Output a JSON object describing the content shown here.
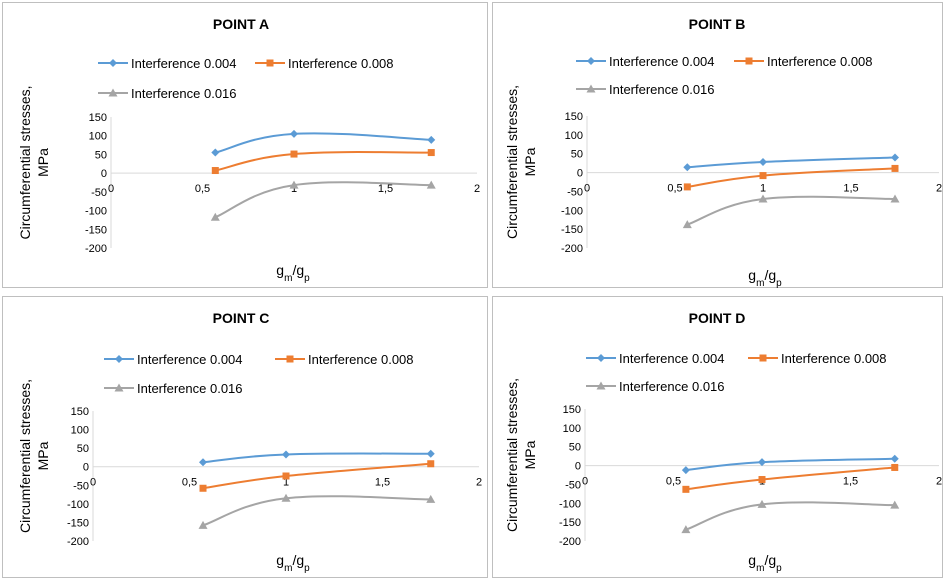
{
  "chart_data": [
    {
      "type": "line",
      "title": "POINT A",
      "ylabel_line1": "Circumferential stresses,",
      "ylabel_line2": "MPa",
      "xlabel": {
        "base1": "g",
        "sub1": "m",
        "sep": "/",
        "base2": "g",
        "sub2": "p"
      },
      "xlim": [
        0,
        2
      ],
      "ylim": [
        -200,
        150
      ],
      "xticks": [
        "0",
        "0,5",
        "1",
        "1,5",
        "2"
      ],
      "yticks": [
        "150",
        "100",
        "50",
        "0",
        "-50",
        "-100",
        "-150",
        "-200"
      ],
      "legend_position": "top",
      "series": [
        {
          "name": "Interference 0.004",
          "color": "#5b9bd5",
          "marker": "diamond",
          "x": [
            0.57,
            1,
            1.75
          ],
          "y": [
            55,
            105,
            89
          ]
        },
        {
          "name": "Interference 0.008",
          "color": "#ed7d31",
          "marker": "square",
          "x": [
            0.57,
            1,
            1.75
          ],
          "y": [
            7,
            51,
            55
          ]
        },
        {
          "name": "Interference 0.016",
          "color": "#a5a5a5",
          "marker": "triangle",
          "x": [
            0.57,
            1,
            1.75
          ],
          "y": [
            -118,
            -32,
            -32
          ]
        }
      ]
    },
    {
      "type": "line",
      "title": "POINT B",
      "ylabel_line1": "Circumferential stresses,",
      "ylabel_line2": "MPa",
      "xlabel": {
        "base1": "g",
        "sub1": "m",
        "sep": "/",
        "base2": "g",
        "sub2": "p"
      },
      "xlim": [
        0,
        2
      ],
      "ylim": [
        -200,
        150
      ],
      "xticks": [
        "0",
        "0,5",
        "1",
        "1,5",
        "2"
      ],
      "yticks": [
        "150",
        "100",
        "50",
        "0",
        "-50",
        "-100",
        "-150",
        "-200"
      ],
      "legend_position": "top",
      "series": [
        {
          "name": "Interference 0.004",
          "color": "#5b9bd5",
          "marker": "diamond",
          "x": [
            0.57,
            1,
            1.75
          ],
          "y": [
            14,
            28,
            40
          ]
        },
        {
          "name": "Interference 0.008",
          "color": "#ed7d31",
          "marker": "square",
          "x": [
            0.57,
            1,
            1.75
          ],
          "y": [
            -38,
            -8,
            11
          ]
        },
        {
          "name": "Interference 0.016",
          "color": "#a5a5a5",
          "marker": "triangle",
          "x": [
            0.57,
            1,
            1.75
          ],
          "y": [
            -138,
            -70,
            -70
          ]
        }
      ]
    },
    {
      "type": "line",
      "title": "POINT C",
      "ylabel_line1": "Circumferential stresses,",
      "ylabel_line2": "MPa",
      "xlabel": {
        "base1": "g",
        "sub1": "m",
        "sep": "/",
        "base2": "g",
        "sub2": "p"
      },
      "xlim": [
        0,
        2
      ],
      "ylim": [
        -200,
        150
      ],
      "xticks": [
        "0",
        "0,5",
        "1",
        "1,5",
        "2"
      ],
      "yticks": [
        "150",
        "100",
        "50",
        "0",
        "-50",
        "-100",
        "-150",
        "-200"
      ],
      "legend_position": "top",
      "series": [
        {
          "name": "Interference 0.004",
          "color": "#5b9bd5",
          "marker": "diamond",
          "x": [
            0.57,
            1,
            1.75
          ],
          "y": [
            12,
            33,
            35
          ]
        },
        {
          "name": "Interference 0.008",
          "color": "#ed7d31",
          "marker": "square",
          "x": [
            0.57,
            1,
            1.75
          ],
          "y": [
            -58,
            -25,
            8
          ]
        },
        {
          "name": "Interference 0.016",
          "color": "#a5a5a5",
          "marker": "triangle",
          "x": [
            0.57,
            1,
            1.75
          ],
          "y": [
            -158,
            -85,
            -88
          ]
        }
      ]
    },
    {
      "type": "line",
      "title": "POINT D",
      "ylabel_line1": "Circumferential stresses,",
      "ylabel_line2": "MPa",
      "xlabel": {
        "base1": "g",
        "sub1": "m",
        "sep": "/",
        "base2": "g",
        "sub2": "p"
      },
      "xlim": [
        0,
        2
      ],
      "ylim": [
        -200,
        150
      ],
      "xticks": [
        "0",
        "0,5",
        "1",
        "1,5",
        "2"
      ],
      "yticks": [
        "150",
        "100",
        "50",
        "0",
        "-50",
        "-100",
        "-150",
        "-200"
      ],
      "legend_position": "top",
      "series": [
        {
          "name": "Interference 0.004",
          "color": "#5b9bd5",
          "marker": "diamond",
          "x": [
            0.57,
            1,
            1.75
          ],
          "y": [
            -12,
            9,
            18
          ]
        },
        {
          "name": "Interference 0.008",
          "color": "#ed7d31",
          "marker": "square",
          "x": [
            0.57,
            1,
            1.75
          ],
          "y": [
            -63,
            -37,
            -5
          ]
        },
        {
          "name": "Interference 0.016",
          "color": "#a5a5a5",
          "marker": "triangle",
          "x": [
            0.57,
            1,
            1.75
          ],
          "y": [
            -170,
            -103,
            -105
          ]
        }
      ]
    }
  ]
}
